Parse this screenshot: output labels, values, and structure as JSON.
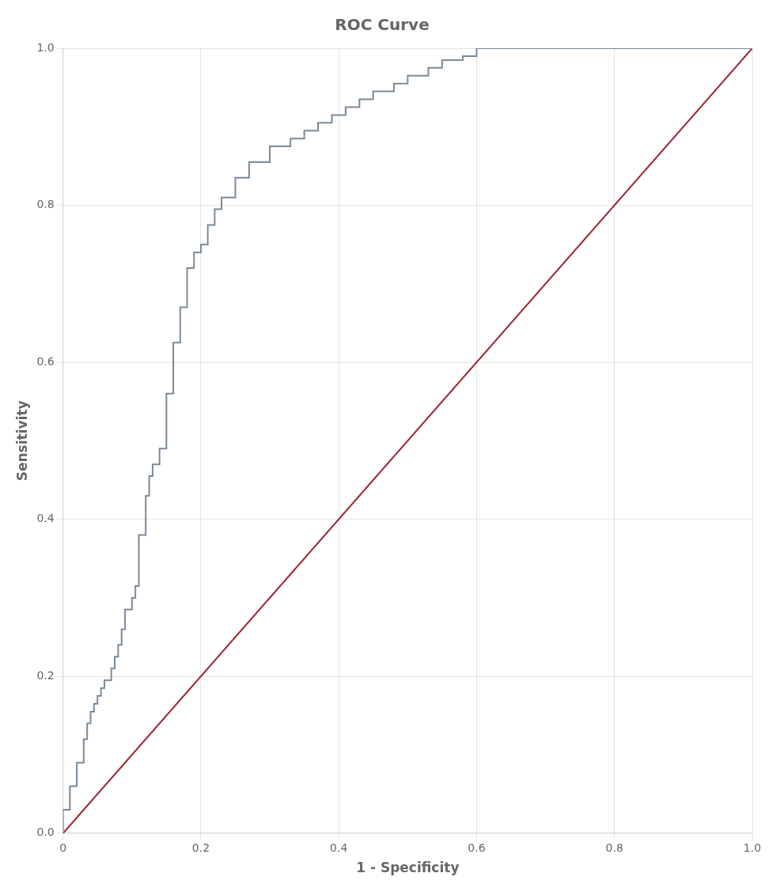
{
  "chart_data": {
    "type": "line",
    "title": "ROC Curve",
    "xlabel": "1 - Specificity",
    "ylabel": "Sensitivity",
    "xlim": [
      0,
      1.0
    ],
    "ylim": [
      0,
      1.0
    ],
    "xticks": [
      0,
      0.2,
      0.4,
      0.6,
      0.8,
      {
        "value": 1.0,
        "label": "1.0"
      }
    ],
    "yticks": [
      {
        "value": 0.0,
        "label": "0.0"
      },
      0.2,
      0.4,
      0.6,
      0.8,
      {
        "value": 1.0,
        "label": "1.0"
      }
    ],
    "grid": true,
    "series": [
      {
        "color": "#7a8a99",
        "x": [
          0.0,
          0.0,
          0.01,
          0.01,
          0.02,
          0.02,
          0.03,
          0.03,
          0.035,
          0.035,
          0.04,
          0.04,
          0.045,
          0.045,
          0.05,
          0.05,
          0.055,
          0.055,
          0.06,
          0.06,
          0.07,
          0.07,
          0.075,
          0.075,
          0.08,
          0.08,
          0.085,
          0.085,
          0.09,
          0.09,
          0.1,
          0.1,
          0.105,
          0.105,
          0.11,
          0.11,
          0.12,
          0.12,
          0.125,
          0.125,
          0.13,
          0.13,
          0.14,
          0.14,
          0.15,
          0.15,
          0.16,
          0.16,
          0.17,
          0.17,
          0.18,
          0.18,
          0.19,
          0.19,
          0.2,
          0.2,
          0.21,
          0.21,
          0.22,
          0.22,
          0.23,
          0.23,
          0.25,
          0.25,
          0.27,
          0.27,
          0.3,
          0.3,
          0.33,
          0.33,
          0.35,
          0.35,
          0.37,
          0.37,
          0.39,
          0.39,
          0.41,
          0.41,
          0.43,
          0.43,
          0.45,
          0.45,
          0.48,
          0.48,
          0.5,
          0.5,
          0.53,
          0.53,
          0.55,
          0.55,
          0.58,
          0.58,
          0.6,
          0.6,
          0.62,
          0.62,
          0.64,
          0.64,
          1.0
        ],
        "values": [
          0.0,
          0.03,
          0.03,
          0.06,
          0.06,
          0.09,
          0.09,
          0.12,
          0.12,
          0.14,
          0.14,
          0.155,
          0.155,
          0.165,
          0.165,
          0.175,
          0.175,
          0.185,
          0.185,
          0.195,
          0.195,
          0.21,
          0.21,
          0.225,
          0.225,
          0.24,
          0.24,
          0.26,
          0.26,
          0.285,
          0.285,
          0.3,
          0.3,
          0.315,
          0.315,
          0.38,
          0.38,
          0.43,
          0.43,
          0.455,
          0.455,
          0.47,
          0.47,
          0.49,
          0.49,
          0.56,
          0.56,
          0.625,
          0.625,
          0.67,
          0.67,
          0.72,
          0.72,
          0.74,
          0.74,
          0.75,
          0.75,
          0.775,
          0.775,
          0.795,
          0.795,
          0.81,
          0.81,
          0.835,
          0.835,
          0.855,
          0.855,
          0.875,
          0.875,
          0.885,
          0.885,
          0.895,
          0.895,
          0.905,
          0.905,
          0.915,
          0.915,
          0.925,
          0.925,
          0.935,
          0.935,
          0.945,
          0.945,
          0.955,
          0.955,
          0.965,
          0.965,
          0.975,
          0.975,
          0.985,
          0.985,
          0.99,
          0.99,
          1.0,
          1.0,
          1.0,
          1.0,
          1.0,
          1.0
        ]
      },
      {
        "color": "#9b2335",
        "x": [
          0,
          1
        ],
        "values": [
          0,
          1
        ]
      }
    ]
  }
}
